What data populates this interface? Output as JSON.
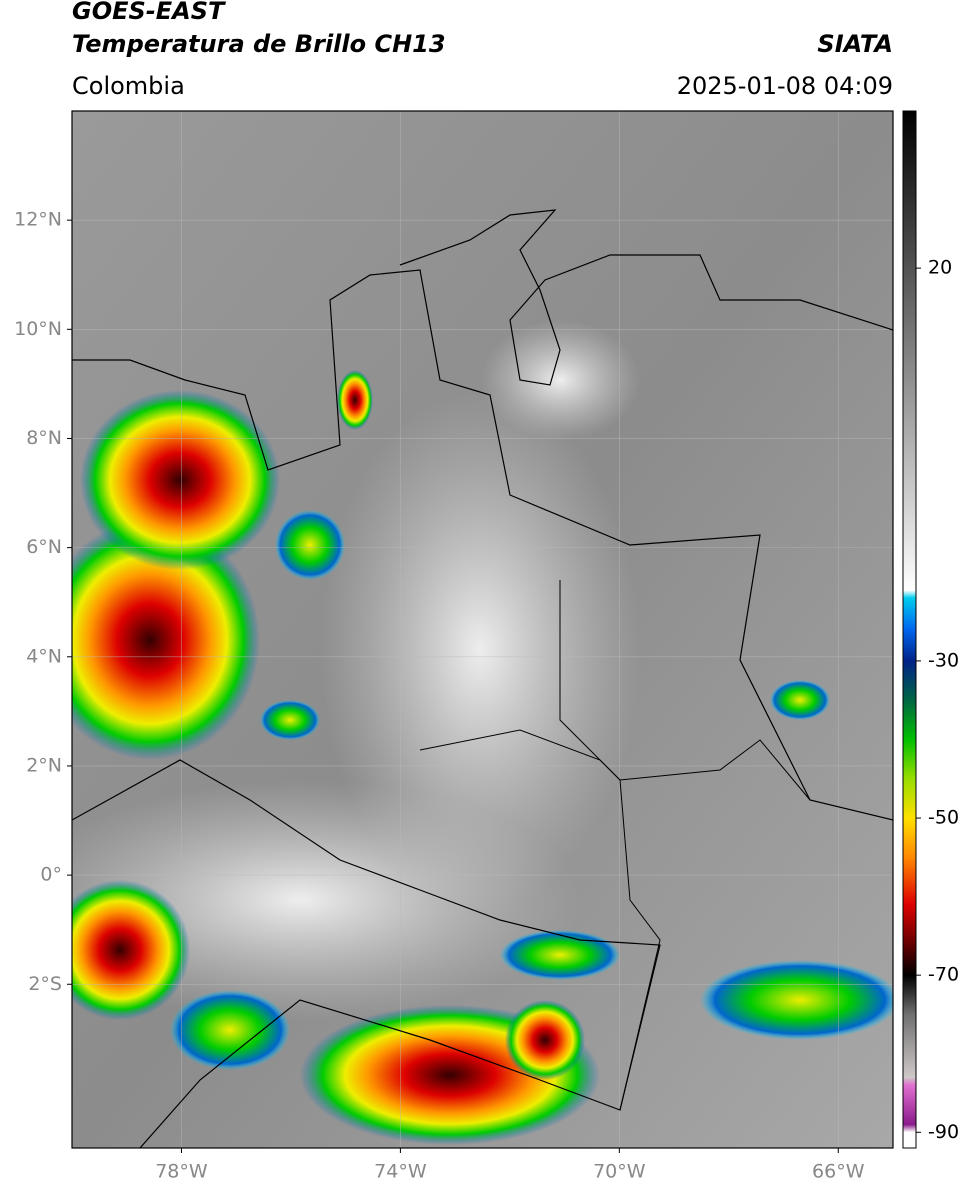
{
  "header": {
    "title": "GOES-EAST",
    "subtitle": "Temperatura de Brillo CH13",
    "source": "SIATA",
    "region": "Colombia",
    "datetime": "2025-01-08 04:09"
  },
  "map": {
    "xlim": [
      -80,
      -65
    ],
    "ylim": [
      -5,
      14
    ],
    "grid": true,
    "xticks": [
      {
        "value": -78,
        "label": "78°W"
      },
      {
        "value": -74,
        "label": "74°W"
      },
      {
        "value": -70,
        "label": "70°W"
      },
      {
        "value": -66,
        "label": "66°W"
      }
    ],
    "yticks": [
      {
        "value": 12,
        "label": "12°N"
      },
      {
        "value": 10,
        "label": "10°N"
      },
      {
        "value": 8,
        "label": "8°N"
      },
      {
        "value": 6,
        "label": "6°N"
      },
      {
        "value": 4,
        "label": "4°N"
      },
      {
        "value": 2,
        "label": "2°N"
      },
      {
        "value": 0,
        "label": "0°"
      },
      {
        "value": -2,
        "label": "2°S"
      }
    ]
  },
  "colorbar": {
    "clim": [
      -92,
      40
    ],
    "ticks": [
      20,
      -30,
      -50,
      -70,
      -90
    ],
    "colormap": [
      {
        "value": -92,
        "color": "#ffffff"
      },
      {
        "value": -90,
        "color": "#ffffff"
      },
      {
        "value": -89,
        "color": "#8b1a8b"
      },
      {
        "value": -84,
        "color": "#e070d0"
      },
      {
        "value": -83,
        "color": "#cfc8c8"
      },
      {
        "value": -75,
        "color": "#707070"
      },
      {
        "value": -70,
        "color": "#000000"
      },
      {
        "value": -66,
        "color": "#660000"
      },
      {
        "value": -61,
        "color": "#dd0000"
      },
      {
        "value": -55,
        "color": "#ff8800"
      },
      {
        "value": -50,
        "color": "#ffe000"
      },
      {
        "value": -45,
        "color": "#99dd00"
      },
      {
        "value": -40,
        "color": "#00c000"
      },
      {
        "value": -35,
        "color": "#006644"
      },
      {
        "value": -30,
        "color": "#002288"
      },
      {
        "value": -26,
        "color": "#0066ee"
      },
      {
        "value": -22,
        "color": "#00ccee"
      },
      {
        "value": -21,
        "color": "#ffffff"
      },
      {
        "value": 40,
        "color": "#000000"
      }
    ]
  }
}
